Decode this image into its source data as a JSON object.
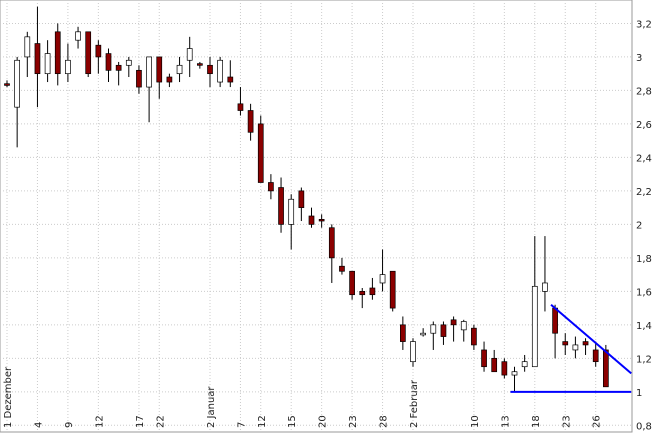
{
  "chart_data": {
    "type": "candlestick",
    "up_color": "#ffffff",
    "down_color": "#8b0000",
    "line_color": "#0000ff",
    "grid": true,
    "ylim": [
      0.76,
      3.34
    ],
    "yticks": [
      {
        "value": 0.8,
        "label": "0,8"
      },
      1,
      {
        "value": 1.2,
        "label": "1,2"
      },
      {
        "value": 1.4,
        "label": "1,4"
      },
      {
        "value": 1.6,
        "label": "1,6"
      },
      {
        "value": 1.8,
        "label": "1,8"
      },
      2,
      {
        "value": 2.2,
        "label": "2,2"
      },
      {
        "value": 2.4,
        "label": "2,4"
      },
      {
        "value": 2.6,
        "label": "2,6"
      },
      {
        "value": 2.8,
        "label": "2,8"
      },
      3,
      {
        "value": 3.2,
        "label": "3,2"
      }
    ],
    "categories": [
      "1 Dezember",
      null,
      null,
      "4",
      null,
      null,
      "9",
      null,
      null,
      "12",
      null,
      null,
      null,
      "17",
      null,
      "22",
      null,
      null,
      null,
      null,
      "2 Januar",
      null,
      null,
      "7",
      null,
      "12",
      null,
      null,
      "15",
      null,
      null,
      "20",
      null,
      null,
      "23",
      null,
      null,
      "28",
      null,
      null,
      "2 Februar",
      null,
      null,
      null,
      null,
      null,
      "10",
      null,
      null,
      "13",
      null,
      null,
      "18",
      null,
      null,
      "23",
      null,
      null,
      "26",
      null
    ],
    "open": [
      2.84,
      2.7,
      3.0,
      3.08,
      2.9,
      3.15,
      2.9,
      3.1,
      3.15,
      3.07,
      3.02,
      2.95,
      2.95,
      2.92,
      2.82,
      3.0,
      2.88,
      2.9,
      2.98,
      2.96,
      2.95,
      2.85,
      2.88,
      2.72,
      2.68,
      2.6,
      2.25,
      2.22,
      2.0,
      2.2,
      2.05,
      2.03,
      1.98,
      1.75,
      1.72,
      1.6,
      1.62,
      1.65,
      1.72,
      1.4,
      1.18,
      1.34,
      1.35,
      1.4,
      1.43,
      1.37,
      1.38,
      1.25,
      1.2,
      1.18,
      1.1,
      1.15,
      1.15,
      1.6,
      1.5,
      1.3,
      1.25,
      1.3,
      1.25,
      1.25
    ],
    "high": [
      2.86,
      3.0,
      3.15,
      3.3,
      3.1,
      3.2,
      3.08,
      3.18,
      3.15,
      3.1,
      3.05,
      2.97,
      3.0,
      2.95,
      3.0,
      3.0,
      2.9,
      3.0,
      3.12,
      2.97,
      3.0,
      3.0,
      2.98,
      2.82,
      2.72,
      2.65,
      2.3,
      2.28,
      2.18,
      2.22,
      2.1,
      2.06,
      2.0,
      1.8,
      1.72,
      1.62,
      1.68,
      1.85,
      1.72,
      1.45,
      1.32,
      1.38,
      1.42,
      1.42,
      1.45,
      1.43,
      1.4,
      1.3,
      1.25,
      1.2,
      1.15,
      1.22,
      1.93,
      1.93,
      1.52,
      1.35,
      1.33,
      1.32,
      1.3,
      1.28
    ],
    "low": [
      2.82,
      2.46,
      2.88,
      2.7,
      2.85,
      2.83,
      2.85,
      3.05,
      2.88,
      2.9,
      2.85,
      2.83,
      2.88,
      2.78,
      2.61,
      2.75,
      2.82,
      2.85,
      2.88,
      2.93,
      2.82,
      2.82,
      2.82,
      2.65,
      2.5,
      2.25,
      2.15,
      1.95,
      1.85,
      2.02,
      1.98,
      1.98,
      1.65,
      1.7,
      1.55,
      1.5,
      1.55,
      1.6,
      1.48,
      1.25,
      1.15,
      1.33,
      1.25,
      1.28,
      1.3,
      1.3,
      1.25,
      1.12,
      1.12,
      1.08,
      1.0,
      1.12,
      1.15,
      1.48,
      1.2,
      1.22,
      1.2,
      1.22,
      1.15,
      1.03
    ],
    "close": [
      2.83,
      2.98,
      3.12,
      2.9,
      3.02,
      2.9,
      2.98,
      3.15,
      2.9,
      3.0,
      2.92,
      2.92,
      2.98,
      2.82,
      3.0,
      2.85,
      2.85,
      2.95,
      3.05,
      2.95,
      2.9,
      2.98,
      2.85,
      2.68,
      2.55,
      2.25,
      2.2,
      2.0,
      2.15,
      2.1,
      2.0,
      2.02,
      1.8,
      1.72,
      1.58,
      1.58,
      1.58,
      1.7,
      1.5,
      1.3,
      1.3,
      1.35,
      1.4,
      1.33,
      1.4,
      1.42,
      1.28,
      1.15,
      1.12,
      1.1,
      1.12,
      1.18,
      1.63,
      1.65,
      1.35,
      1.28,
      1.28,
      1.28,
      1.18,
      1.03
    ],
    "trend_lines": [
      {
        "x": [
          53.6,
          61.5
        ],
        "y": [
          1.52,
          1.11
        ]
      },
      {
        "x": [
          49.6,
          61.5
        ],
        "y": [
          1.0,
          1.0
        ]
      }
    ]
  }
}
